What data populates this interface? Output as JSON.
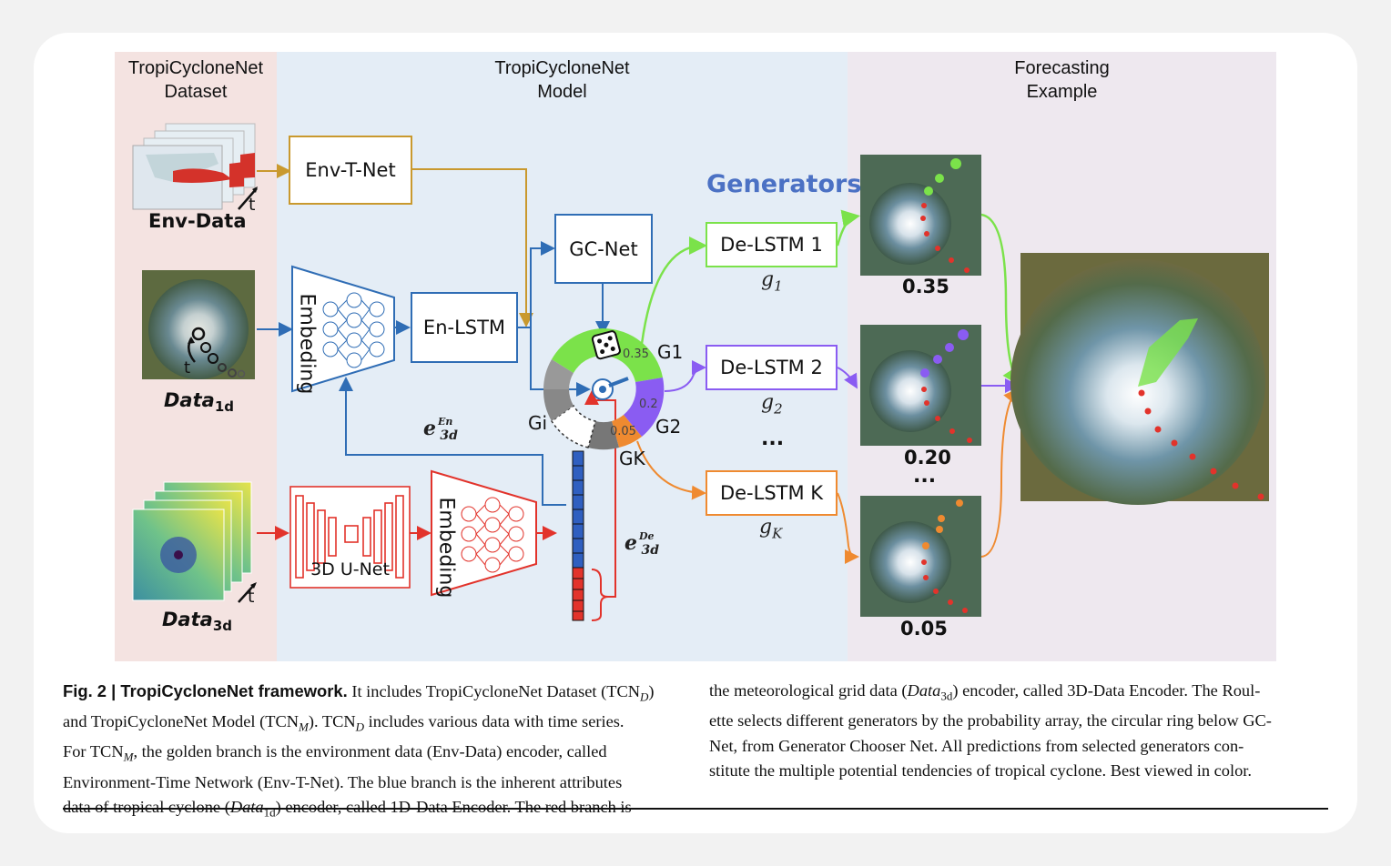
{
  "panels": {
    "dataset": "TropiCycloneNet\nDataset",
    "model": "TropiCycloneNet\nModel",
    "example": "Forecasting\nExample"
  },
  "boxes": {
    "env_t_net": "Env-T-Net",
    "gc_net": "GC-Net",
    "en_lstm": "En-LSTM",
    "embeding_top": "Embeding",
    "embeding_bottom": "Embeding",
    "unet": "3D U-Net",
    "de_lstm_1": "De-LSTM 1",
    "de_lstm_2": "De-LSTM 2",
    "de_lstm_k": "De-LSTM K"
  },
  "labels": {
    "env_data": "Env-Data",
    "data1d": "Data",
    "data1d_sub": "1d",
    "data3d": "Data",
    "data3d_sub": "3d",
    "t": "t",
    "generators": "Generators",
    "g1_math": "g",
    "g1_sub": "1",
    "g2_math": "g",
    "g2_sub": "2",
    "gk_math": "g",
    "gk_sub": "K",
    "dots": "...",
    "e_en": "e",
    "e_en_sup": "En",
    "e_en_sub": "3d",
    "e_de": "e",
    "e_de_sup": "De",
    "e_de_sub": "3d"
  },
  "roulette": {
    "G1": "G1",
    "G2": "G2",
    "GK": "GK",
    "Gi": "Gi",
    "p1": "0.35",
    "p2": "0.2",
    "pk": "0.05"
  },
  "forecast_probs": [
    "0.35",
    "0.20",
    "...",
    "0.05"
  ],
  "colors": {
    "gold": "#c9992e",
    "blue": "#2f6db5",
    "red": "#e2332b",
    "green": "#7be24a",
    "purple": "#8a5cf2",
    "orange": "#ef8a30",
    "generators_title": "#4b71c4"
  },
  "caption": {
    "fig_label": "Fig. 2 | TropiCycloneNet framework.",
    "left": [
      " It includes TropiCycloneNet Dataset (TCN",
      "D",
      ")",
      "and TropiCycloneNet Model (TCN",
      "M",
      "). TCN",
      "D",
      " includes various data with time series.",
      "For TCN",
      "M",
      ", the golden branch is the environment data (Env-Data) encoder, called",
      "Environment-Time Network (Env-T-Net). The blue branch is the inherent attributes",
      "data of tropical cyclone (",
      "Data",
      "1d",
      ") encoder, called 1D-Data Encoder. The red branch is"
    ],
    "right": [
      "the meteorological grid data (",
      "Data",
      "3d",
      ") encoder, called 3D-Data Encoder. The Roul-",
      "ette selects different generators by the probability array, the circular ring below GC-",
      "Net, from Generator Chooser Net. All predictions from selected generators con-",
      "stitute the multiple potential tendencies of tropical cyclone. Best viewed in color."
    ]
  }
}
